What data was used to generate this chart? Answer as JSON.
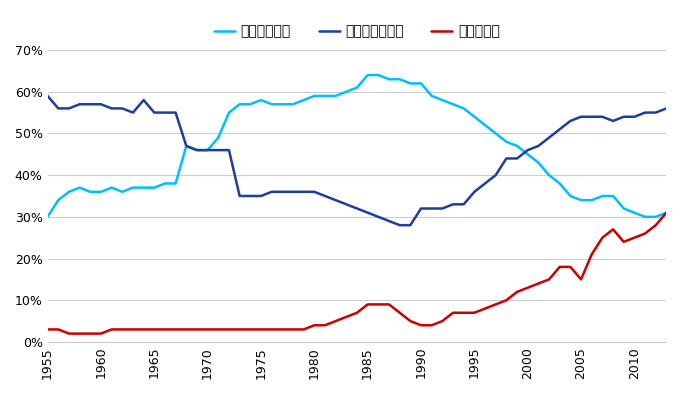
{
  "insider": {
    "years": [
      1955,
      1956,
      1957,
      1958,
      1959,
      1960,
      1961,
      1962,
      1963,
      1964,
      1965,
      1966,
      1967,
      1968,
      1969,
      1970,
      1971,
      1972,
      1973,
      1974,
      1975,
      1976,
      1977,
      1978,
      1979,
      1980,
      1981,
      1982,
      1983,
      1984,
      1985,
      1986,
      1987,
      1988,
      1989,
      1990,
      1991,
      1992,
      1993,
      1994,
      1995,
      1996,
      1997,
      1998,
      1999,
      2000,
      2001,
      2002,
      2003,
      2004,
      2005,
      2006,
      2007,
      2008,
      2009,
      2010,
      2011,
      2012,
      2013
    ],
    "values": [
      0.3,
      0.34,
      0.36,
      0.37,
      0.36,
      0.36,
      0.37,
      0.36,
      0.37,
      0.37,
      0.37,
      0.38,
      0.38,
      0.47,
      0.46,
      0.46,
      0.49,
      0.55,
      0.57,
      0.57,
      0.58,
      0.57,
      0.57,
      0.57,
      0.58,
      0.59,
      0.59,
      0.59,
      0.6,
      0.61,
      0.64,
      0.64,
      0.63,
      0.63,
      0.62,
      0.62,
      0.59,
      0.58,
      0.57,
      0.56,
      0.54,
      0.52,
      0.5,
      0.48,
      0.47,
      0.45,
      0.43,
      0.4,
      0.38,
      0.35,
      0.34,
      0.34,
      0.35,
      0.35,
      0.32,
      0.31,
      0.3,
      0.3,
      0.31
    ],
    "color": "#00BFFF",
    "label": "インサイダー"
  },
  "outsider": {
    "years": [
      1955,
      1956,
      1957,
      1958,
      1959,
      1960,
      1961,
      1962,
      1963,
      1964,
      1965,
      1966,
      1967,
      1968,
      1969,
      1970,
      1971,
      1972,
      1973,
      1974,
      1975,
      1976,
      1977,
      1978,
      1979,
      1980,
      1981,
      1982,
      1983,
      1984,
      1985,
      1986,
      1987,
      1988,
      1989,
      1990,
      1991,
      1992,
      1993,
      1994,
      1995,
      1996,
      1997,
      1998,
      1999,
      2000,
      2001,
      2002,
      2003,
      2004,
      2005,
      2006,
      2007,
      2008,
      2009,
      2010,
      2011,
      2012,
      2013
    ],
    "values": [
      0.59,
      0.56,
      0.56,
      0.57,
      0.57,
      0.57,
      0.56,
      0.56,
      0.55,
      0.58,
      0.55,
      0.55,
      0.55,
      0.47,
      0.46,
      0.46,
      0.46,
      0.46,
      0.35,
      0.35,
      0.35,
      0.36,
      0.36,
      0.36,
      0.36,
      0.36,
      0.35,
      0.34,
      0.33,
      0.32,
      0.31,
      0.3,
      0.29,
      0.28,
      0.28,
      0.32,
      0.32,
      0.32,
      0.33,
      0.33,
      0.36,
      0.38,
      0.4,
      0.44,
      0.44,
      0.46,
      0.47,
      0.49,
      0.51,
      0.53,
      0.54,
      0.54,
      0.54,
      0.53,
      0.54,
      0.54,
      0.55,
      0.55,
      0.56
    ],
    "color": "#1C3F9E",
    "label": "アウトサイダー"
  },
  "foreign": {
    "years": [
      1955,
      1956,
      1957,
      1958,
      1959,
      1960,
      1961,
      1962,
      1963,
      1964,
      1965,
      1966,
      1967,
      1968,
      1969,
      1970,
      1971,
      1972,
      1973,
      1974,
      1975,
      1976,
      1977,
      1978,
      1979,
      1980,
      1981,
      1982,
      1983,
      1984,
      1985,
      1986,
      1987,
      1988,
      1989,
      1990,
      1991,
      1992,
      1993,
      1994,
      1995,
      1996,
      1997,
      1998,
      1999,
      2000,
      2001,
      2002,
      2003,
      2004,
      2005,
      2006,
      2007,
      2008,
      2009,
      2010,
      2011,
      2012,
      2013
    ],
    "values": [
      0.03,
      0.03,
      0.02,
      0.02,
      0.02,
      0.02,
      0.03,
      0.03,
      0.03,
      0.03,
      0.03,
      0.03,
      0.03,
      0.03,
      0.03,
      0.03,
      0.03,
      0.03,
      0.03,
      0.03,
      0.03,
      0.03,
      0.03,
      0.03,
      0.03,
      0.04,
      0.04,
      0.05,
      0.06,
      0.07,
      0.09,
      0.09,
      0.09,
      0.07,
      0.05,
      0.04,
      0.04,
      0.05,
      0.07,
      0.07,
      0.07,
      0.08,
      0.09,
      0.1,
      0.12,
      0.13,
      0.14,
      0.15,
      0.18,
      0.18,
      0.15,
      0.21,
      0.25,
      0.27,
      0.24,
      0.25,
      0.26,
      0.28,
      0.31
    ],
    "color": "#CC0000",
    "label": "海外投資家"
  },
  "xlim": [
    1955,
    2013
  ],
  "ylim": [
    0.0,
    0.7
  ],
  "yticks": [
    0.0,
    0.1,
    0.2,
    0.3,
    0.4,
    0.5,
    0.6,
    0.7
  ],
  "xticks": [
    1955,
    1960,
    1965,
    1970,
    1975,
    1980,
    1985,
    1990,
    1995,
    2000,
    2005,
    2010
  ],
  "background_color": "#FFFFFF",
  "grid_color": "#CCCCCC",
  "line_width": 1.8,
  "legend_fontsize": 10,
  "tick_fontsize": 9
}
